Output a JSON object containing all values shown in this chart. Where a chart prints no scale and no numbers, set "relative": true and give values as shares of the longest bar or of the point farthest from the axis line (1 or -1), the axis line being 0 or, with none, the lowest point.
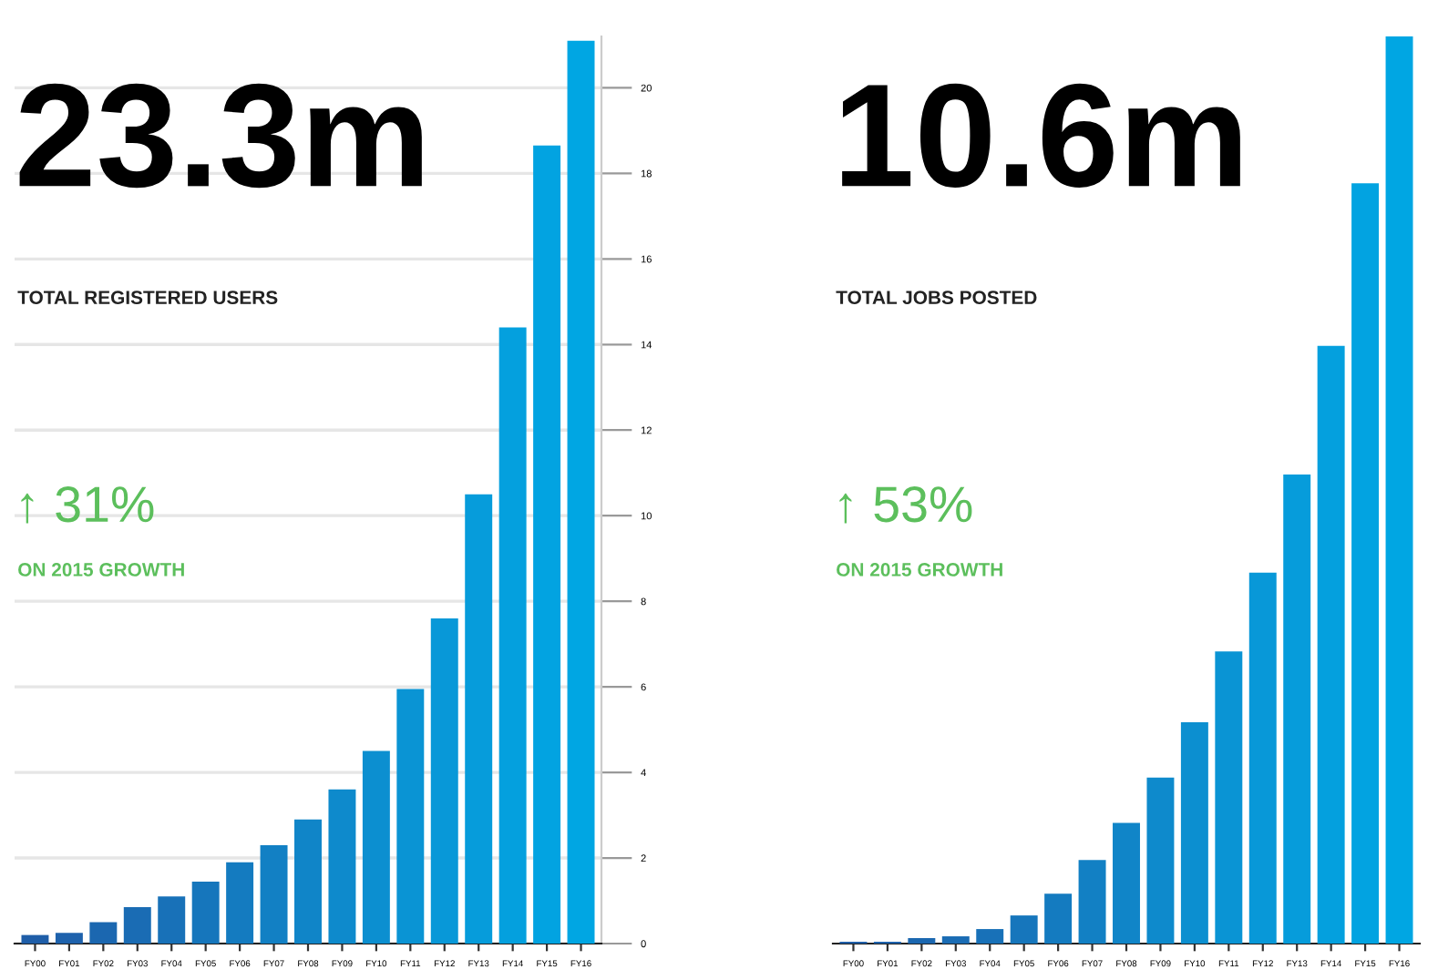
{
  "chart_data": [
    {
      "type": "bar",
      "title": "23.3m",
      "subtitle": "TOTAL REGISTERED USERS",
      "annotations": [
        "↑ 31%",
        "ON 2015 GROWTH"
      ],
      "categories": [
        "FY00",
        "FY01",
        "FY02",
        "FY03",
        "FY04",
        "FY05",
        "FY06",
        "FY07",
        "FY08",
        "FY09",
        "FY10",
        "FY11",
        "FY12",
        "FY13",
        "FY14",
        "FY15",
        "FY16"
      ],
      "values": [
        0.2,
        0.25,
        0.5,
        0.85,
        1.1,
        1.45,
        1.9,
        2.3,
        2.9,
        3.6,
        4.5,
        5.95,
        7.6,
        10.5,
        14.4,
        18.65,
        21.1
      ],
      "colors": [
        "#1f5ea8",
        "#1e62ac",
        "#1b67b0",
        "#1a6cb4",
        "#1871b8",
        "#1676bc",
        "#147bc0",
        "#1280c4",
        "#1085c8",
        "#0e8acc",
        "#0c8fd0",
        "#0a94d4",
        "#0898d8",
        "#069cdb",
        "#04a0de",
        "#02a3e1",
        "#00a6e3"
      ],
      "ylim": [
        0,
        21.2
      ],
      "yticks": [
        0,
        2,
        4,
        6,
        8,
        10,
        12,
        14,
        16,
        18,
        20
      ],
      "grid": "y"
    },
    {
      "type": "bar",
      "title": "10.6m",
      "subtitle": "TOTAL JOBS POSTED",
      "annotations": [
        "↑ 53%",
        "ON 2015 GROWTH"
      ],
      "categories": [
        "FY00",
        "FY01",
        "FY02",
        "FY03",
        "FY04",
        "FY05",
        "FY06",
        "FY07",
        "FY08",
        "FY09",
        "FY10",
        "FY11",
        "FY12",
        "FY13",
        "FY14",
        "FY15",
        "FY16"
      ],
      "values": [
        0.002,
        0.002,
        0.006,
        0.008,
        0.016,
        0.031,
        0.055,
        0.092,
        0.133,
        0.183,
        0.244,
        0.322,
        0.409,
        0.517,
        0.659,
        0.838,
        1
      ],
      "colors": [
        "#1f5ea8",
        "#1e62ac",
        "#1b67b0",
        "#1a6cb4",
        "#1871b8",
        "#1676bc",
        "#147bc0",
        "#1280c4",
        "#1085c8",
        "#0e8acc",
        "#0c8fd0",
        "#0a94d4",
        "#0898d8",
        "#069cdb",
        "#04a0de",
        "#02a3e1",
        "#00a6e3"
      ],
      "relative": true
    }
  ]
}
